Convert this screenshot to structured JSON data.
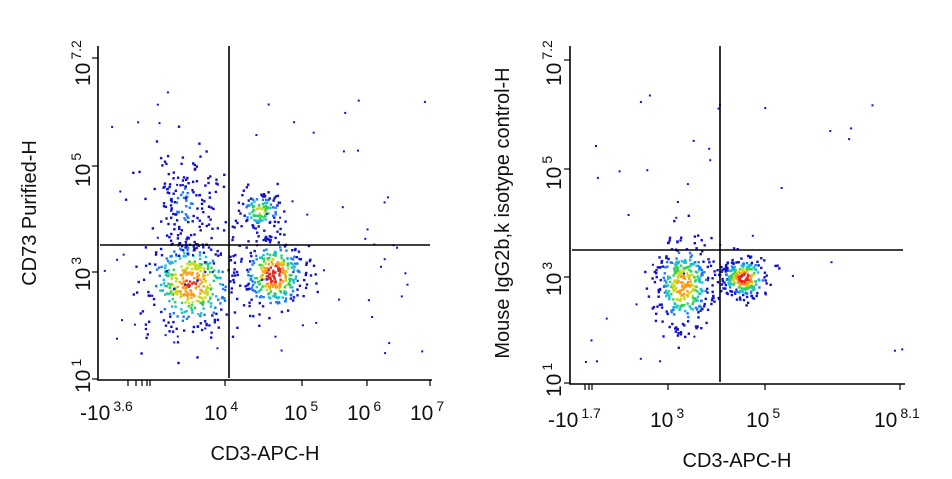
{
  "chart_data": [
    {
      "type": "scatter",
      "style": "flow-cytometry density dot plot with quadrant gates",
      "xlabel": "CD3-APC-H",
      "ylabel": "CD73 Purified-H",
      "x_ticks": [
        {
          "base": "-10",
          "exp": "3.6"
        },
        {
          "base": "10",
          "exp": "4"
        },
        {
          "base": "10",
          "exp": "5"
        },
        {
          "base": "10",
          "exp": "6"
        },
        {
          "base": "10",
          "exp": "7"
        }
      ],
      "y_ticks": [
        {
          "base": "10",
          "exp": "1"
        },
        {
          "base": "10",
          "exp": "3"
        },
        {
          "base": "10",
          "exp": "5"
        },
        {
          "base": "10",
          "exp": "7.2"
        }
      ],
      "quadrant_gate": {
        "x": 11000,
        "y": 2100
      },
      "populations": [
        {
          "label": "CD3- CD73-",
          "x": 3500,
          "y": 650,
          "relative_density": "highest"
        },
        {
          "label": "CD3+ CD73-",
          "x": 42000,
          "y": 950,
          "relative_density": "high"
        },
        {
          "label": "CD3+ CD73+",
          "x": 28000,
          "y": 15000,
          "relative_density": "medium"
        },
        {
          "label": "CD3- CD73+",
          "x": 3000,
          "y": 20000,
          "relative_density": "low"
        }
      ]
    },
    {
      "type": "scatter",
      "style": "flow-cytometry density dot plot with quadrant gates",
      "xlabel": "CD3-APC-H",
      "ylabel": "Mouse IgG2b,k isotype control-H",
      "x_ticks": [
        {
          "base": "-10",
          "exp": "1.7"
        },
        {
          "base": "10",
          "exp": "3"
        },
        {
          "base": "10",
          "exp": "5"
        },
        {
          "base": "10",
          "exp": "8.1"
        }
      ],
      "y_ticks": [
        {
          "base": "10",
          "exp": "1"
        },
        {
          "base": "10",
          "exp": "3"
        },
        {
          "base": "10",
          "exp": "5"
        },
        {
          "base": "10",
          "exp": "7.2"
        }
      ],
      "quadrant_gate": {
        "x": 10000,
        "y": 2200
      },
      "populations": [
        {
          "label": "CD3- isotype-",
          "x": 2000,
          "y": 700,
          "relative_density": "high"
        },
        {
          "label": "CD3+ isotype-",
          "x": 35000,
          "y": 950,
          "relative_density": "highest"
        }
      ]
    }
  ],
  "colors": {
    "density_scale": [
      "#1010d0",
      "#1e78ff",
      "#17c0d8",
      "#2ed25a",
      "#c8dc1e",
      "#ff9a14",
      "#e6281e"
    ],
    "gate": "#000000",
    "axis": "#000000"
  }
}
